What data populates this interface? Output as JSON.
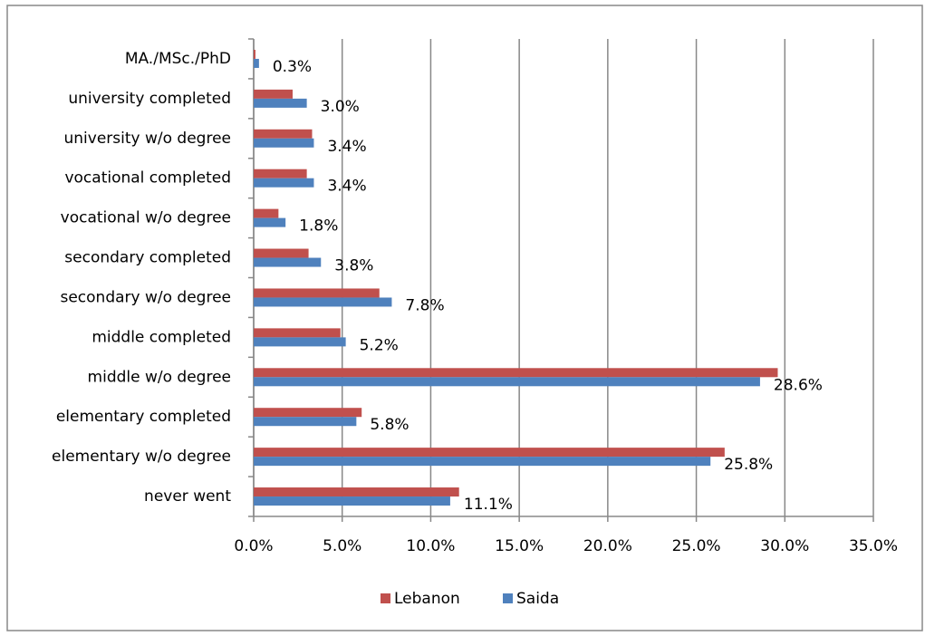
{
  "chart_data": {
    "type": "bar",
    "orientation": "horizontal",
    "categories": [
      "MA./MSc./PhD",
      "university completed",
      "university w/o degree",
      "vocational completed",
      "vocational w/o degree",
      "secondary completed",
      "secondary w/o degree",
      "middle completed",
      "middle w/o degree",
      "elementary completed",
      "elementary w/o degree",
      "never went"
    ],
    "series": [
      {
        "name": "Lebanon",
        "color": "#c0504d",
        "values": [
          0.1,
          2.2,
          3.3,
          3.0,
          1.4,
          3.1,
          7.1,
          4.9,
          29.6,
          6.1,
          26.6,
          11.6
        ]
      },
      {
        "name": "Saida",
        "color": "#4f81bd",
        "values": [
          0.3,
          3.0,
          3.4,
          3.4,
          1.8,
          3.8,
          7.8,
          5.2,
          28.6,
          5.8,
          25.8,
          11.1
        ],
        "value_labels": [
          "0.3%",
          "3.0%",
          "3.4%",
          "3.4%",
          "1.8%",
          "3.8%",
          "7.8%",
          "5.2%",
          "28.6%",
          "5.8%",
          "25.8%",
          "11.1%"
        ]
      }
    ],
    "xlim": [
      0,
      35
    ],
    "xticks": [
      {
        "value": 0,
        "label": "0.0%"
      },
      {
        "value": 5,
        "label": "5.0%"
      },
      {
        "value": 10,
        "label": "10.0%"
      },
      {
        "value": 15,
        "label": "15.0%"
      },
      {
        "value": 20,
        "label": "20.0%"
      },
      {
        "value": 25,
        "label": "25.0%"
      },
      {
        "value": 30,
        "label": "30.0%"
      },
      {
        "value": 35,
        "label": "35.0%"
      }
    ],
    "grid": true,
    "legend": "bottom"
  }
}
